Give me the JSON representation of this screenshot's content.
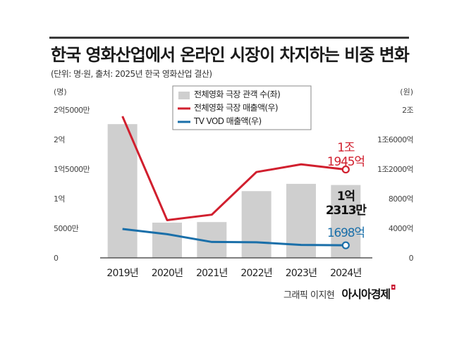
{
  "header": {
    "title": "한국 영화산업에서 온라인 시장이 차지하는 비중 변화",
    "subtitle": "(단위: 명·원, 출처: 2025년 한국 영화산업 결산)"
  },
  "credit": {
    "author": "그래픽 이지현",
    "brand": "아시아경제"
  },
  "colors": {
    "bar": "#cfcfcf",
    "red": "#d11f2e",
    "blue": "#1a6fa9",
    "axis": "#555555"
  },
  "chart_data": {
    "type": "bar",
    "categories": [
      "2019년",
      "2020년",
      "2021년",
      "2022년",
      "2023년",
      "2024년"
    ],
    "left_axis": {
      "unit_label": "(명)",
      "range": [
        0,
        250000000
      ],
      "ticks": [
        "0",
        "5000만",
        "1억",
        "1억5000만",
        "2억",
        "2억5000만"
      ]
    },
    "right_axis": {
      "unit_label": "(원)",
      "range": [
        0,
        2000000000000
      ],
      "ticks": [
        "0",
        "4000억",
        "8000억",
        "1조2000억",
        "1조6000억",
        "2조"
      ]
    },
    "series": [
      {
        "name": "전체영화 극장 관객 수(좌)",
        "type": "bar",
        "axis": "left",
        "values": [
          226000000,
          59500000,
          60500000,
          112800000,
          125100000,
          123130000
        ]
      },
      {
        "name": "전체영화 극장 매출액(우)",
        "type": "line",
        "axis": "right",
        "values": [
          1914000000000,
          510000000000,
          584000000000,
          1160000000000,
          1264000000000,
          1194500000000
        ]
      },
      {
        "name": "TV VOD 매출액(우)",
        "type": "line",
        "axis": "right",
        "values": [
          390000000000,
          320000000000,
          215000000000,
          211000000000,
          175000000000,
          169800000000
        ]
      }
    ],
    "annotations": {
      "revenue_2024": [
        "1조",
        "1945억"
      ],
      "audience_2024": [
        "1억",
        "2313만"
      ],
      "vod_2024": [
        "1698억"
      ]
    }
  }
}
